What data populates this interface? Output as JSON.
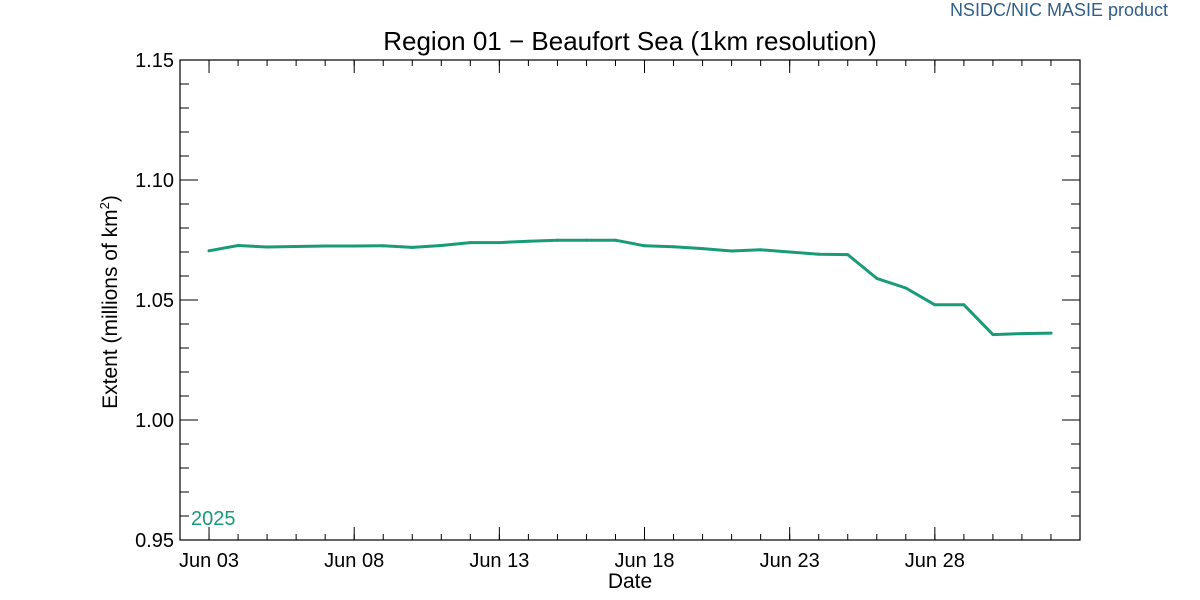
{
  "header": {
    "credit": "NSIDC/NIC MASIE product"
  },
  "chart_data": {
    "type": "line",
    "title": "Region 01 − Beaufort Sea (1km resolution)",
    "xlabel": "Date",
    "ylabel_prefix": "Extent (millions of km",
    "ylabel_sup": "2",
    "ylabel_suffix": ")",
    "xlim": [
      2,
      33
    ],
    "ylim": [
      0.95,
      1.15
    ],
    "x_ticks": [
      {
        "day": 3,
        "label": "Jun 03"
      },
      {
        "day": 8,
        "label": "Jun 08"
      },
      {
        "day": 13,
        "label": "Jun 13"
      },
      {
        "day": 18,
        "label": "Jun 18"
      },
      {
        "day": 23,
        "label": "Jun 23"
      },
      {
        "day": 28,
        "label": "Jun 28"
      }
    ],
    "y_ticks": [
      {
        "value": 0.95,
        "label": "0.95"
      },
      {
        "value": 1.0,
        "label": "1.00"
      },
      {
        "value": 1.05,
        "label": "1.05"
      },
      {
        "value": 1.1,
        "label": "1.10"
      },
      {
        "value": 1.15,
        "label": "1.15"
      }
    ],
    "grid": false,
    "legend_position": "bottom-left",
    "series": [
      {
        "name": "2025",
        "color": "#1a9b78",
        "x": [
          3,
          4,
          5,
          6,
          7,
          8,
          9,
          10,
          11,
          12,
          13,
          14,
          15,
          16,
          17,
          18,
          19,
          20,
          21,
          22,
          23,
          24,
          25,
          26,
          27,
          28,
          29,
          30,
          31,
          32
        ],
        "values": [
          1.0705,
          1.0727,
          1.0721,
          1.0723,
          1.0725,
          1.0725,
          1.0726,
          1.0719,
          1.0727,
          1.0739,
          1.0739,
          1.0745,
          1.0749,
          1.0749,
          1.0749,
          1.0726,
          1.0722,
          1.0714,
          1.0704,
          1.0709,
          1.07,
          1.0691,
          1.0689,
          1.059,
          1.055,
          1.048,
          1.048,
          1.0356,
          1.036,
          1.0362
        ]
      }
    ]
  }
}
